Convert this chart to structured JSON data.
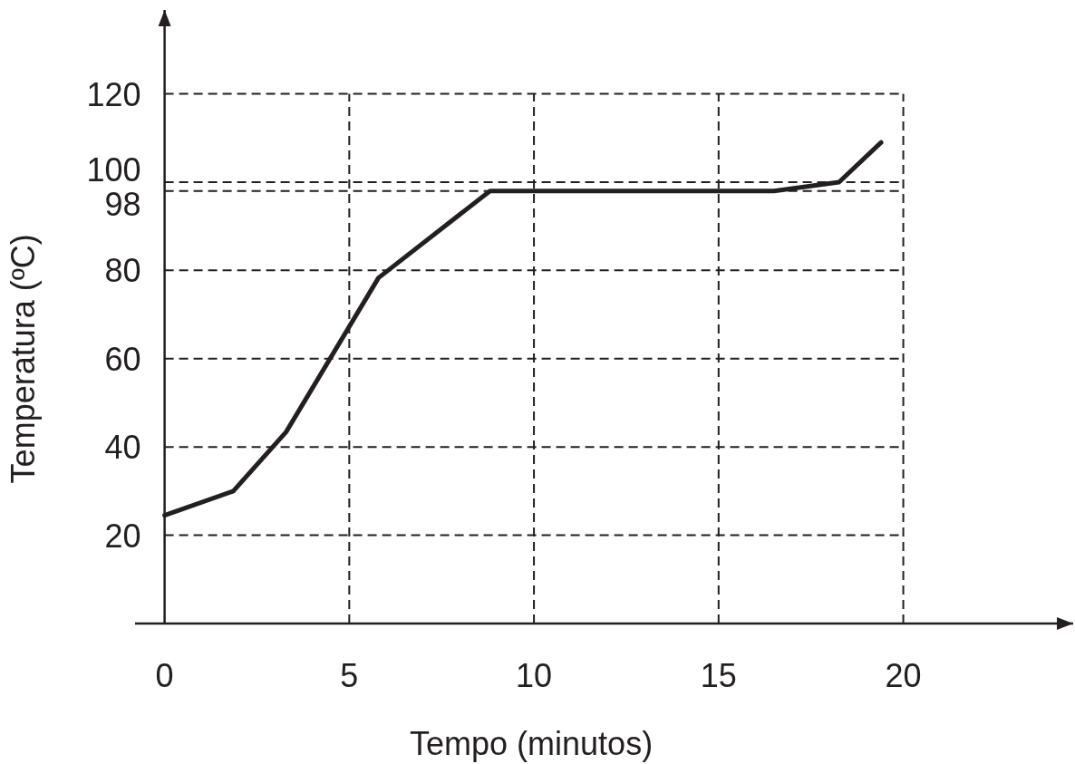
{
  "chart_data": {
    "type": "line",
    "xlabel": "Tempo (minutos)",
    "ylabel": "Temperatura (ºC)",
    "x": [
      0,
      1.86,
      3.29,
      5.79,
      8.81,
      16.5,
      18.26,
      19.4
    ],
    "series": [
      {
        "color": "#231f20",
        "values": [
          24.5,
          30,
          43.4,
          78.3,
          98,
          98,
          100,
          109
        ]
      }
    ],
    "xlim": [
      -0.8,
      24.6
    ],
    "ylim": [
      0,
      139
    ],
    "xticks": [
      0,
      5,
      10,
      15,
      20
    ],
    "yticks": [
      20,
      40,
      60,
      80,
      98,
      100,
      120
    ],
    "grid": true,
    "marker": "none",
    "line_style": "solid"
  }
}
